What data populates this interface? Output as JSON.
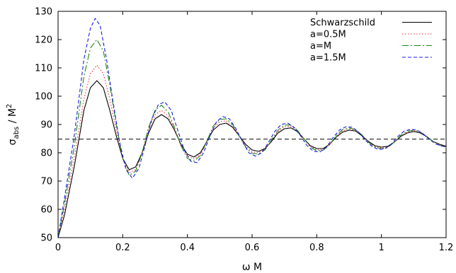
{
  "chart_data": {
    "type": "line",
    "xlabel": "ω M",
    "ylabel": {
      "base": "σ",
      "sub": "abs",
      "rest": " / M",
      "sup": "2"
    },
    "xlim": [
      0,
      1.2
    ],
    "ylim": [
      50,
      130
    ],
    "xticks": [
      "0",
      "0.2",
      "0.4",
      "0.6",
      "0.8",
      "1",
      "1.2"
    ],
    "yticks": [
      "50",
      "60",
      "70",
      "80",
      "90",
      "100",
      "110",
      "120",
      "130"
    ],
    "grid": false,
    "legend_position": "top-right",
    "reference_line": {
      "y": 84.8,
      "style": "dashed",
      "color": "#000000"
    },
    "series": [
      {
        "name": "Schwarzschild",
        "color": "#000000",
        "dash": "",
        "points": [
          [
            0,
            50
          ],
          [
            0.02,
            58
          ],
          [
            0.05,
            75
          ],
          [
            0.08,
            95
          ],
          [
            0.1,
            103
          ],
          [
            0.12,
            105.5
          ],
          [
            0.14,
            103
          ],
          [
            0.16,
            95
          ],
          [
            0.18,
            86
          ],
          [
            0.2,
            78
          ],
          [
            0.22,
            74
          ],
          [
            0.24,
            75
          ],
          [
            0.26,
            80
          ],
          [
            0.28,
            87
          ],
          [
            0.3,
            92
          ],
          [
            0.32,
            93.5
          ],
          [
            0.34,
            92
          ],
          [
            0.36,
            88
          ],
          [
            0.38,
            83
          ],
          [
            0.4,
            79.5
          ],
          [
            0.42,
            78.5
          ],
          [
            0.44,
            80
          ],
          [
            0.46,
            84
          ],
          [
            0.48,
            88
          ],
          [
            0.5,
            90
          ],
          [
            0.52,
            90.5
          ],
          [
            0.54,
            89
          ],
          [
            0.56,
            86
          ],
          [
            0.58,
            83
          ],
          [
            0.6,
            81
          ],
          [
            0.62,
            80.5
          ],
          [
            0.64,
            81.5
          ],
          [
            0.66,
            84
          ],
          [
            0.68,
            87
          ],
          [
            0.7,
            88.5
          ],
          [
            0.72,
            88.8
          ],
          [
            0.74,
            87.5
          ],
          [
            0.76,
            85
          ],
          [
            0.78,
            82.5
          ],
          [
            0.8,
            81.5
          ],
          [
            0.82,
            81.5
          ],
          [
            0.84,
            83
          ],
          [
            0.86,
            85.5
          ],
          [
            0.88,
            87.3
          ],
          [
            0.9,
            88
          ],
          [
            0.92,
            87.7
          ],
          [
            0.94,
            86
          ],
          [
            0.96,
            84
          ],
          [
            0.98,
            82.5
          ],
          [
            1.0,
            82
          ],
          [
            1.02,
            82.3
          ],
          [
            1.04,
            83.8
          ],
          [
            1.06,
            85.8
          ],
          [
            1.08,
            87
          ],
          [
            1.1,
            87.5
          ],
          [
            1.12,
            87
          ],
          [
            1.14,
            85.7
          ],
          [
            1.16,
            84
          ],
          [
            1.18,
            83
          ],
          [
            1.2,
            82.3
          ]
        ]
      },
      {
        "name": "a=0.5M",
        "color": "#e8303a",
        "dash": "1.5,2.5",
        "points": [
          [
            0,
            50
          ],
          [
            0.02,
            60
          ],
          [
            0.05,
            78
          ],
          [
            0.08,
            99
          ],
          [
            0.1,
            108
          ],
          [
            0.12,
            111
          ],
          [
            0.14,
            108
          ],
          [
            0.16,
            99
          ],
          [
            0.18,
            88
          ],
          [
            0.2,
            78
          ],
          [
            0.22,
            73
          ],
          [
            0.24,
            74
          ],
          [
            0.26,
            80
          ],
          [
            0.28,
            88
          ],
          [
            0.3,
            93.5
          ],
          [
            0.32,
            95
          ],
          [
            0.34,
            93
          ],
          [
            0.36,
            88.5
          ],
          [
            0.38,
            82.5
          ],
          [
            0.4,
            78.8
          ],
          [
            0.42,
            77.8
          ],
          [
            0.44,
            79.5
          ],
          [
            0.46,
            84
          ],
          [
            0.48,
            88.8
          ],
          [
            0.5,
            91
          ],
          [
            0.52,
            91.3
          ],
          [
            0.54,
            89.5
          ],
          [
            0.56,
            86
          ],
          [
            0.58,
            82.5
          ],
          [
            0.6,
            80.3
          ],
          [
            0.62,
            80
          ],
          [
            0.64,
            81.3
          ],
          [
            0.66,
            84.3
          ],
          [
            0.68,
            87.5
          ],
          [
            0.7,
            89.3
          ],
          [
            0.72,
            89.3
          ],
          [
            0.74,
            87.8
          ],
          [
            0.76,
            85
          ],
          [
            0.78,
            82.3
          ],
          [
            0.8,
            81
          ],
          [
            0.82,
            81.2
          ],
          [
            0.84,
            83
          ],
          [
            0.86,
            85.8
          ],
          [
            0.88,
            87.8
          ],
          [
            0.9,
            88.4
          ],
          [
            0.92,
            88
          ],
          [
            0.94,
            86.2
          ],
          [
            0.96,
            83.8
          ],
          [
            0.98,
            82.2
          ],
          [
            1.0,
            81.7
          ],
          [
            1.02,
            82
          ],
          [
            1.04,
            83.8
          ],
          [
            1.06,
            86
          ],
          [
            1.08,
            87.3
          ],
          [
            1.1,
            87.8
          ],
          [
            1.12,
            87.2
          ],
          [
            1.14,
            85.8
          ],
          [
            1.16,
            84
          ],
          [
            1.18,
            82.8
          ],
          [
            1.2,
            82.1
          ]
        ]
      },
      {
        "name": "a=M",
        "color": "#1a8a1a",
        "dash": "9,3,2,3",
        "points": [
          [
            0,
            50
          ],
          [
            0.02,
            62
          ],
          [
            0.05,
            82
          ],
          [
            0.08,
            107
          ],
          [
            0.1,
            117
          ],
          [
            0.12,
            120
          ],
          [
            0.14,
            116
          ],
          [
            0.16,
            104
          ],
          [
            0.18,
            90
          ],
          [
            0.2,
            78
          ],
          [
            0.22,
            72
          ],
          [
            0.24,
            73.5
          ],
          [
            0.26,
            80
          ],
          [
            0.28,
            89
          ],
          [
            0.3,
            95
          ],
          [
            0.32,
            96.8
          ],
          [
            0.34,
            94.5
          ],
          [
            0.36,
            89
          ],
          [
            0.38,
            82.5
          ],
          [
            0.4,
            78
          ],
          [
            0.42,
            77
          ],
          [
            0.44,
            79
          ],
          [
            0.46,
            84
          ],
          [
            0.48,
            89.5
          ],
          [
            0.5,
            91.8
          ],
          [
            0.52,
            92
          ],
          [
            0.54,
            90
          ],
          [
            0.56,
            86
          ],
          [
            0.58,
            82
          ],
          [
            0.6,
            79.8
          ],
          [
            0.62,
            79.5
          ],
          [
            0.64,
            81
          ],
          [
            0.66,
            84.5
          ],
          [
            0.68,
            88
          ],
          [
            0.7,
            89.8
          ],
          [
            0.72,
            89.8
          ],
          [
            0.74,
            88
          ],
          [
            0.76,
            85
          ],
          [
            0.78,
            82
          ],
          [
            0.8,
            80.7
          ],
          [
            0.82,
            80.9
          ],
          [
            0.84,
            82.9
          ],
          [
            0.86,
            86
          ],
          [
            0.88,
            88.2
          ],
          [
            0.9,
            88.8
          ],
          [
            0.92,
            88.2
          ],
          [
            0.94,
            86.3
          ],
          [
            0.96,
            83.7
          ],
          [
            0.98,
            82
          ],
          [
            1.0,
            81.4
          ],
          [
            1.02,
            81.8
          ],
          [
            1.04,
            83.8
          ],
          [
            1.06,
            86.2
          ],
          [
            1.08,
            87.6
          ],
          [
            1.1,
            88
          ],
          [
            1.12,
            87.4
          ],
          [
            1.14,
            85.8
          ],
          [
            1.16,
            84
          ],
          [
            1.18,
            82.6
          ],
          [
            1.2,
            82
          ]
        ]
      },
      {
        "name": "a=1.5M",
        "color": "#1c1cdd",
        "dash": "5,3",
        "points": [
          [
            0,
            50
          ],
          [
            0.02,
            64
          ],
          [
            0.05,
            86
          ],
          [
            0.08,
            113
          ],
          [
            0.1,
            124
          ],
          [
            0.115,
            127.5
          ],
          [
            0.13,
            125
          ],
          [
            0.15,
            113
          ],
          [
            0.17,
            98
          ],
          [
            0.19,
            84
          ],
          [
            0.21,
            74
          ],
          [
            0.23,
            71
          ],
          [
            0.25,
            74.5
          ],
          [
            0.27,
            83
          ],
          [
            0.29,
            92
          ],
          [
            0.31,
            97
          ],
          [
            0.33,
            98
          ],
          [
            0.35,
            95
          ],
          [
            0.37,
            88
          ],
          [
            0.39,
            81
          ],
          [
            0.41,
            77
          ],
          [
            0.43,
            76.5
          ],
          [
            0.45,
            80
          ],
          [
            0.47,
            86
          ],
          [
            0.49,
            91
          ],
          [
            0.51,
            92.8
          ],
          [
            0.53,
            92
          ],
          [
            0.55,
            88.5
          ],
          [
            0.57,
            84
          ],
          [
            0.59,
            80
          ],
          [
            0.61,
            78.8
          ],
          [
            0.63,
            80
          ],
          [
            0.65,
            83.5
          ],
          [
            0.67,
            87.5
          ],
          [
            0.69,
            90
          ],
          [
            0.71,
            90.5
          ],
          [
            0.73,
            89
          ],
          [
            0.75,
            86
          ],
          [
            0.77,
            82.5
          ],
          [
            0.79,
            80.5
          ],
          [
            0.81,
            80.3
          ],
          [
            0.83,
            82
          ],
          [
            0.85,
            85.3
          ],
          [
            0.87,
            88
          ],
          [
            0.89,
            89.2
          ],
          [
            0.91,
            89
          ],
          [
            0.93,
            87.3
          ],
          [
            0.95,
            84.5
          ],
          [
            0.97,
            82.3
          ],
          [
            0.99,
            81.2
          ],
          [
            1.01,
            81.4
          ],
          [
            1.03,
            83
          ],
          [
            1.05,
            85.7
          ],
          [
            1.07,
            87.6
          ],
          [
            1.09,
            88.3
          ],
          [
            1.11,
            88
          ],
          [
            1.13,
            86.6
          ],
          [
            1.15,
            84.6
          ],
          [
            1.17,
            83
          ],
          [
            1.2,
            82
          ]
        ]
      }
    ]
  }
}
